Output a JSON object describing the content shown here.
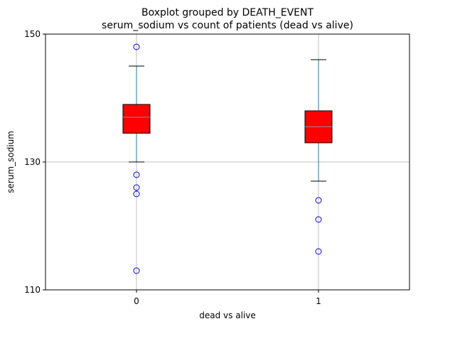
{
  "chart_data": {
    "type": "box",
    "title": "Boxplot grouped by DEATH_EVENT",
    "subtitle": "serum_sodium vs count of patients (dead vs alive)",
    "xlabel": "dead vs alive",
    "ylabel": "serum_sodium",
    "categories": [
      "0",
      "1"
    ],
    "ylim": [
      110,
      150
    ],
    "yticks": [
      110,
      130,
      150
    ],
    "grid": true,
    "box_color": "#ff0000",
    "median_color": "#8c8c8c",
    "whisker_color": "#1f77b4",
    "outlier_color": "#0000ff",
    "boxes": [
      {
        "category": "0",
        "whisker_low": 130,
        "q1": 134.5,
        "median": 137,
        "q3": 139,
        "whisker_high": 145,
        "outliers": [
          148,
          128,
          126,
          125,
          113
        ]
      },
      {
        "category": "1",
        "whisker_low": 127,
        "q1": 133,
        "median": 135.5,
        "q3": 138,
        "whisker_high": 146,
        "outliers": [
          124,
          121,
          116
        ]
      }
    ]
  }
}
